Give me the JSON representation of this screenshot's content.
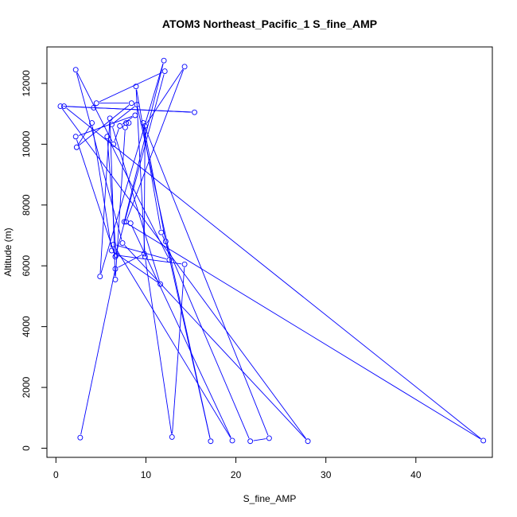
{
  "chart_data": {
    "type": "scatter",
    "title": "ATOM3 Northeast_Pacific_1 S_fine_AMP",
    "xlabel": "S_fine_AMP",
    "ylabel": "Altitude (m)",
    "xlim": [
      -1.0,
      48.5
    ],
    "ylim": [
      -300,
      13200
    ],
    "xticks": [
      0,
      10,
      20,
      30,
      40
    ],
    "yticks": [
      0,
      2000,
      4000,
      6000,
      8000,
      10000,
      12000
    ],
    "series": [
      {
        "color": "#0000ff",
        "marker": "open-circle",
        "line": true,
        "points": [
          [
            2.7,
            350
          ],
          [
            6.6,
            5900
          ],
          [
            9.8,
            6400
          ],
          [
            9.9,
            10600
          ],
          [
            14.3,
            12550
          ],
          [
            7.8,
            7450
          ],
          [
            8.3,
            7400
          ],
          [
            19.6,
            250
          ],
          [
            6.4,
            6700
          ],
          [
            12.6,
            6200
          ],
          [
            5.7,
            10250
          ],
          [
            6.7,
            6350
          ],
          [
            14.3,
            6050
          ],
          [
            12.9,
            370
          ],
          [
            9.9,
            6300
          ],
          [
            8.9,
            11900
          ],
          [
            11.7,
            7100
          ],
          [
            21.6,
            230
          ],
          [
            23.7,
            330
          ],
          [
            9.7,
            10700
          ],
          [
            12.2,
            6800
          ],
          [
            17.2,
            230
          ],
          [
            9.0,
            11300
          ],
          [
            6.2,
            10650
          ],
          [
            11.6,
            5400
          ],
          [
            6.2,
            6500
          ],
          [
            4.0,
            10700
          ],
          [
            2.3,
            9900
          ],
          [
            8.4,
            11350
          ],
          [
            4.5,
            11350
          ],
          [
            12.1,
            12400
          ],
          [
            6.6,
            6300
          ],
          [
            2.2,
            10250
          ],
          [
            8.8,
            10950
          ],
          [
            7.1,
            10600
          ],
          [
            6.4,
            10000
          ],
          [
            2.2,
            12450
          ],
          [
            7.4,
            6750
          ],
          [
            28.0,
            230
          ],
          [
            0.5,
            11250
          ],
          [
            15.4,
            11050
          ],
          [
            4.2,
            11200
          ],
          [
            0.9,
            11250
          ],
          [
            47.5,
            250
          ],
          [
            7.6,
            7450
          ],
          [
            12.0,
            12750
          ],
          [
            4.9,
            5650
          ],
          [
            6.0,
            10850
          ],
          [
            6.6,
            5550
          ],
          [
            7.7,
            10550
          ],
          [
            8.1,
            10700
          ],
          [
            7.8,
            10700
          ]
        ]
      }
    ]
  }
}
